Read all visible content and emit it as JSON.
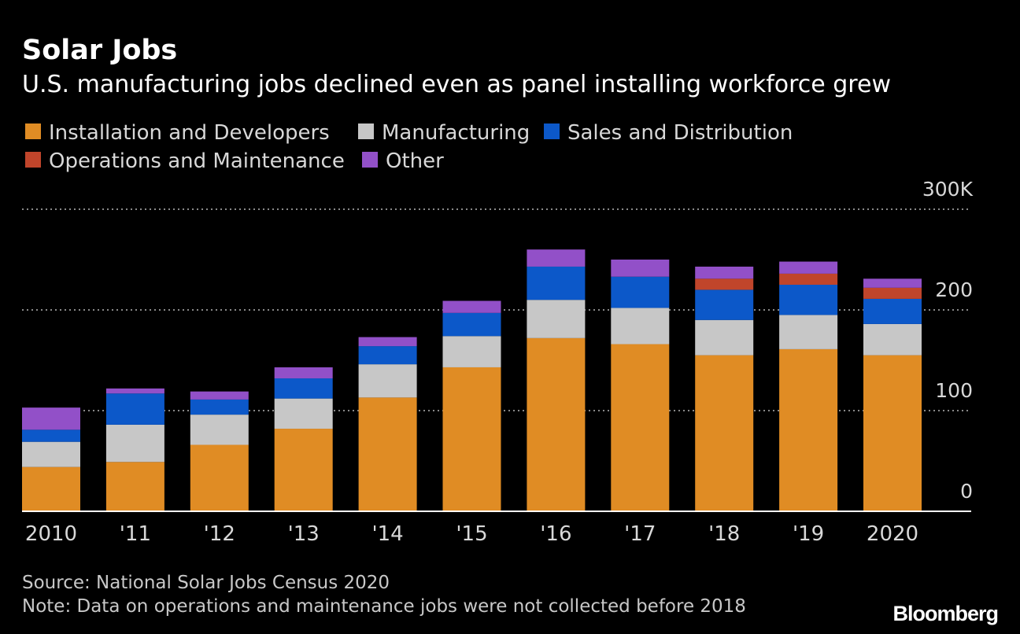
{
  "chart_data": {
    "type": "bar",
    "stacked": true,
    "title": "Solar Jobs",
    "subtitle": "U.S. manufacturing jobs declined even as panel installing workforce grew",
    "categories": [
      "2010",
      "'11",
      "'12",
      "'13",
      "'14",
      "'15",
      "'16",
      "'17",
      "'18",
      "'19",
      "2020"
    ],
    "series": [
      {
        "name": "Installation and Developers",
        "color": "#e08c24",
        "values": [
          44,
          49,
          66,
          82,
          113,
          143,
          172,
          166,
          155,
          161,
          155
        ]
      },
      {
        "name": "Manufacturing",
        "color": "#c7c7c7",
        "values": [
          25,
          37,
          30,
          30,
          33,
          31,
          38,
          36,
          35,
          34,
          31
        ]
      },
      {
        "name": "Sales and Distribution",
        "color": "#0c58c9",
        "values": [
          12,
          31,
          15,
          20,
          18,
          23,
          33,
          31,
          30,
          30,
          25
        ]
      },
      {
        "name": "Operations and Maintenance",
        "color": "#c0452b",
        "values": [
          0,
          0,
          0,
          0,
          0,
          0,
          0,
          0,
          11,
          11,
          11
        ]
      },
      {
        "name": "Other",
        "color": "#9250c8",
        "values": [
          22,
          5,
          8,
          11,
          9,
          12,
          17,
          17,
          12,
          12,
          9
        ]
      }
    ],
    "yticks": [
      {
        "value": 0,
        "label": "0"
      },
      {
        "value": 100,
        "label": "100"
      },
      {
        "value": 200,
        "label": "200"
      },
      {
        "value": 300,
        "label": "300K"
      }
    ],
    "ylim": [
      0,
      300
    ],
    "xlabel": "",
    "ylabel": "",
    "grid": true,
    "legend_position": "top-left"
  },
  "footer": {
    "source": "Source: National Solar Jobs Census 2020",
    "note": "Note: Data on operations and maintenance jobs were not collected before 2018",
    "brand": "Bloomberg"
  }
}
